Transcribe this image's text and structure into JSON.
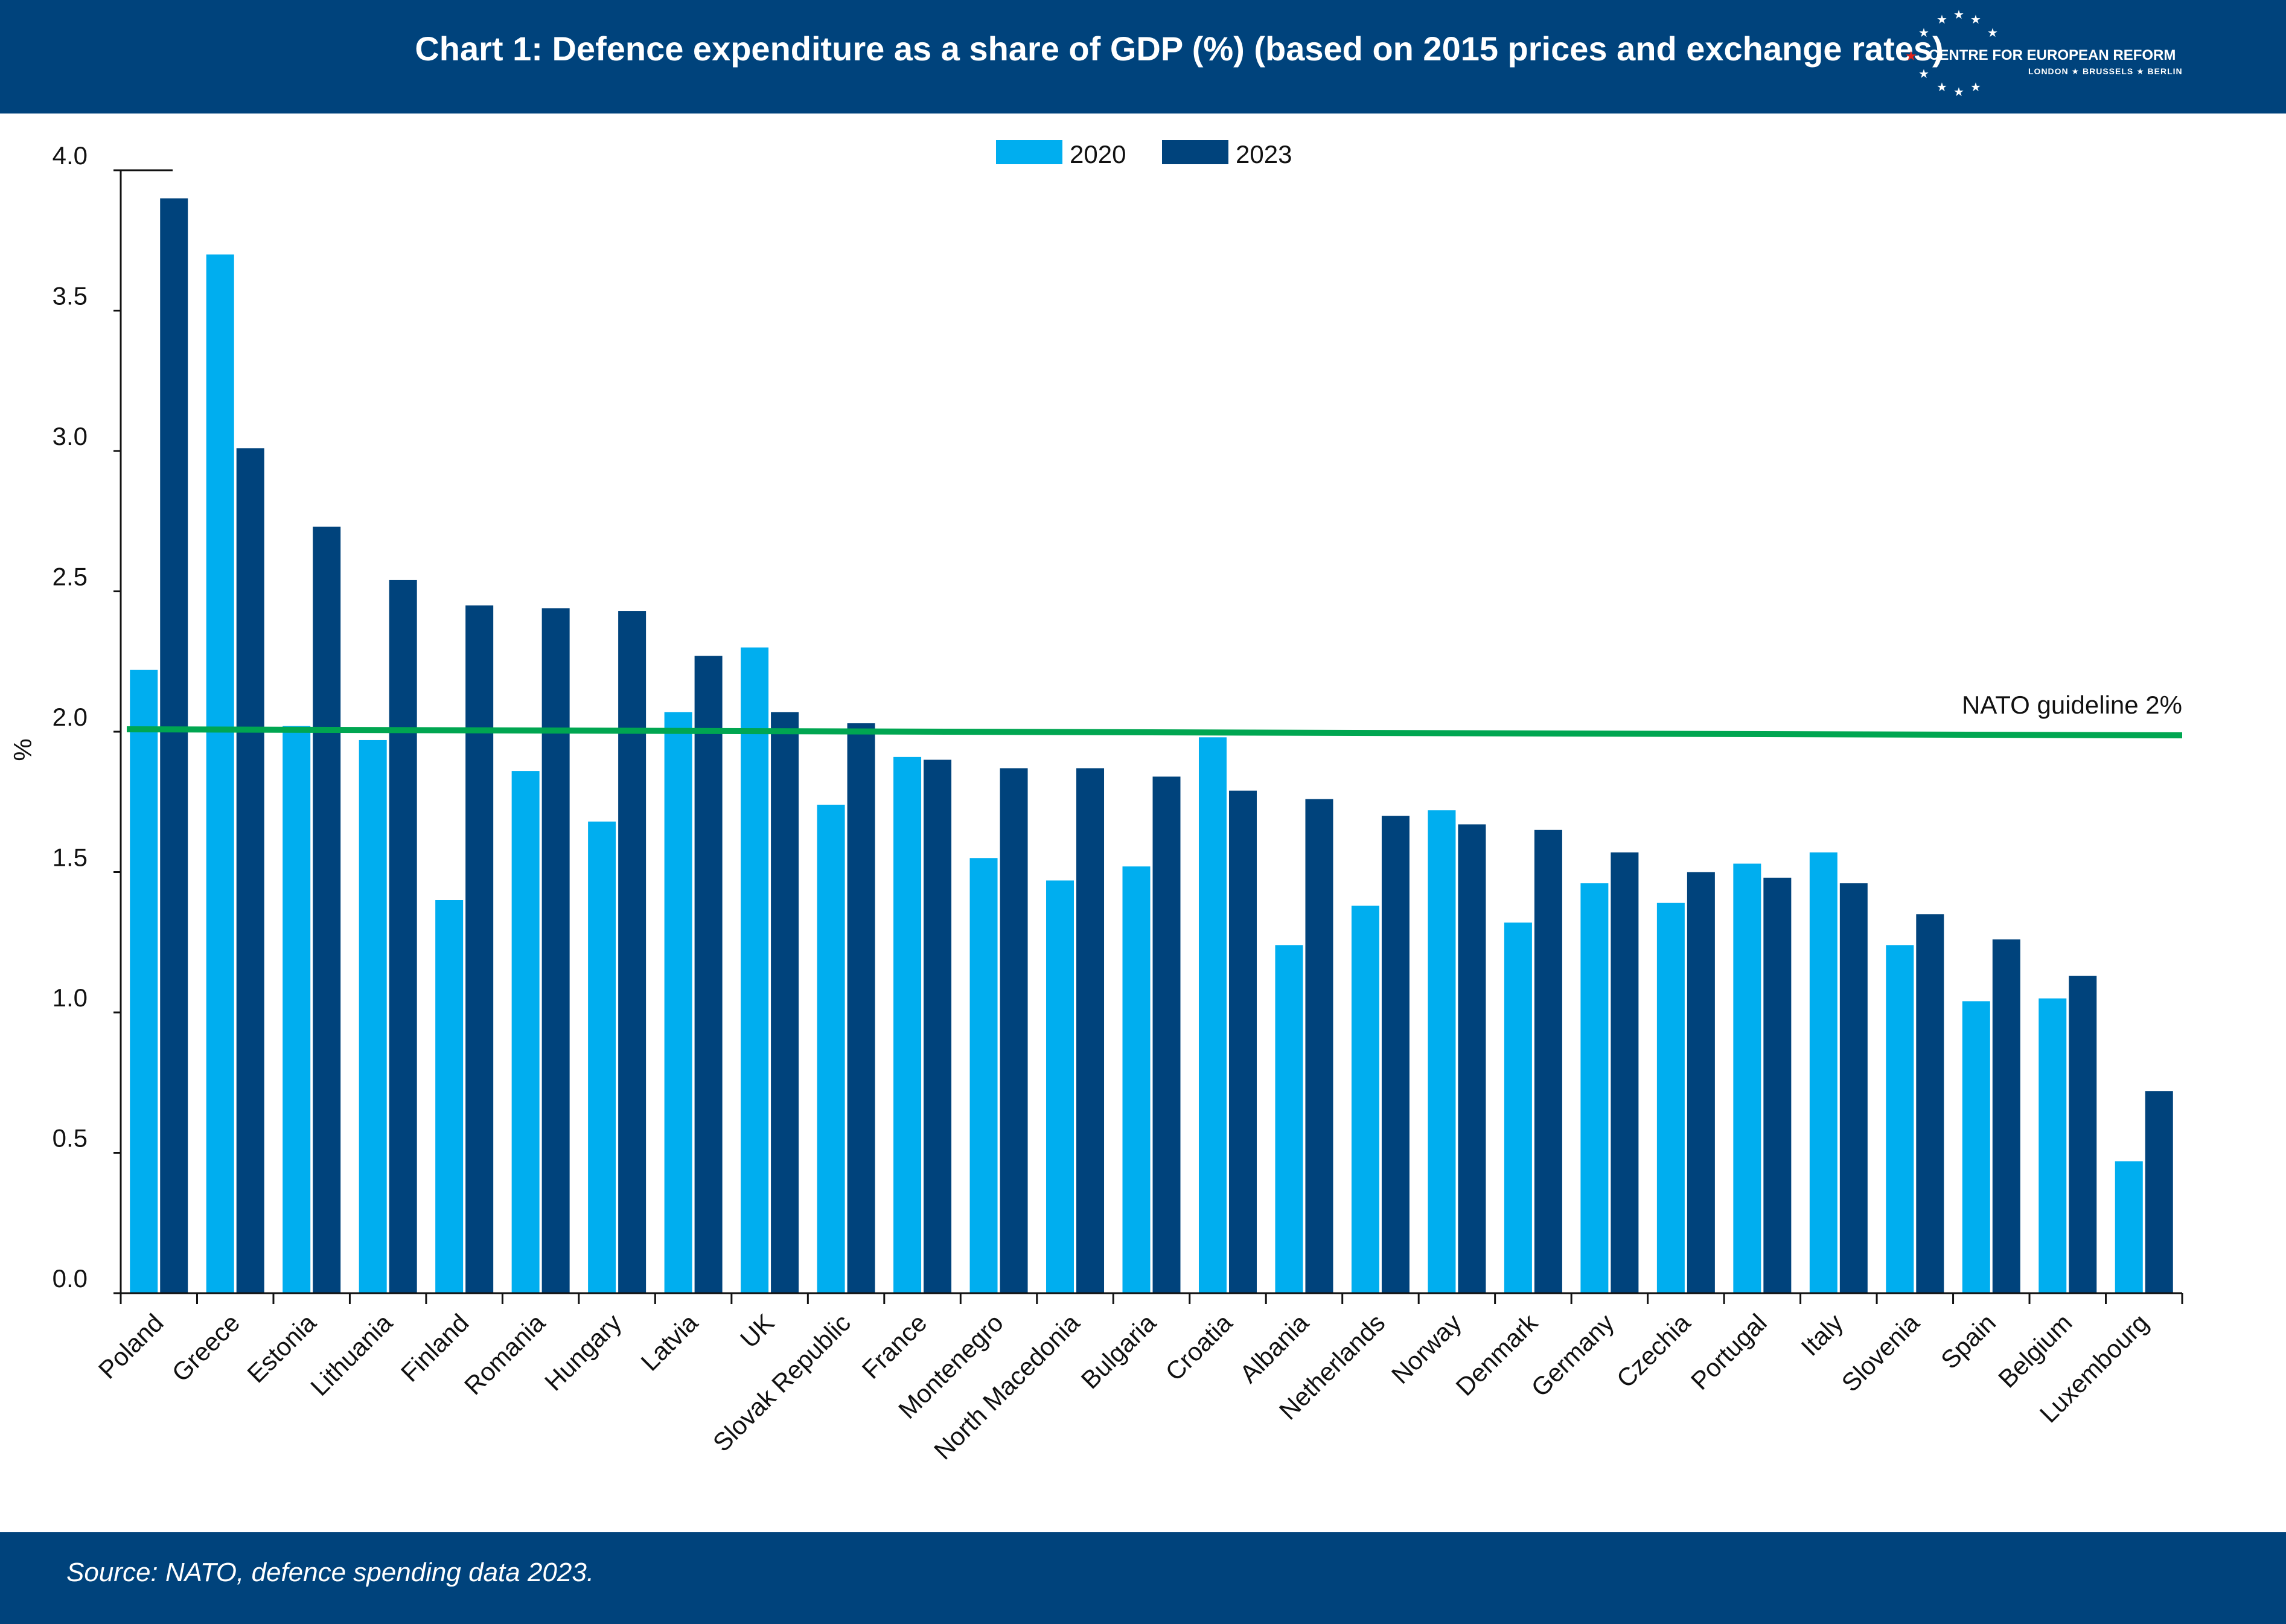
{
  "header": {
    "title": "Chart 1: Defence expenditure as a share of GDP (%) (based on 2015 prices and exchange rates)",
    "logo_text": "CENTRE FOR EUROPEAN REFORM",
    "logo_cities": "LONDON ★ BRUSSELS ★ BERLIN"
  },
  "footer": {
    "source": "Source: NATO, defence spending data 2023."
  },
  "colors": {
    "header_bg": "#00437c",
    "series_2020": "#00aeef",
    "series_2023": "#00437c",
    "guideline": "#00a651"
  },
  "chart_data": {
    "type": "bar",
    "ylabel": "%",
    "ylim": [
      0,
      4
    ],
    "yticks": [
      "0.0",
      "0.5",
      "1.0",
      "1.5",
      "2.0",
      "2.5",
      "3.0",
      "3.5",
      "4.0"
    ],
    "legend_position": "top-center",
    "categories": [
      "Poland",
      "Greece",
      "Estonia",
      "Lithuania",
      "Finland",
      "Romania",
      "Hungary",
      "Latvia",
      "UK",
      "Slovak Republic",
      "France",
      "Montenegro",
      "North Macedonia",
      "Bulgaria",
      "Croatia",
      "Albania",
      "Netherlands",
      "Norway",
      "Denmark",
      "Germany",
      "Czechia",
      "Portugal",
      "Italy",
      "Slovenia",
      "Spain",
      "Belgium",
      "Luxembourg"
    ],
    "series": [
      {
        "name": "2020",
        "values": [
          2.22,
          3.7,
          2.02,
          1.97,
          1.4,
          1.86,
          1.68,
          2.07,
          2.3,
          1.74,
          1.91,
          1.55,
          1.47,
          1.52,
          1.98,
          1.24,
          1.38,
          1.72,
          1.32,
          1.46,
          1.39,
          1.53,
          1.57,
          1.24,
          1.04,
          1.05,
          0.47
        ]
      },
      {
        "name": "2023",
        "values": [
          3.9,
          3.01,
          2.73,
          2.54,
          2.45,
          2.44,
          2.43,
          2.27,
          2.07,
          2.03,
          1.9,
          1.87,
          1.87,
          1.84,
          1.79,
          1.76,
          1.7,
          1.67,
          1.65,
          1.57,
          1.5,
          1.48,
          1.46,
          1.35,
          1.26,
          1.13,
          0.72
        ]
      }
    ],
    "reference_line": {
      "label": "NATO guideline 2%",
      "value": 2.0
    }
  }
}
